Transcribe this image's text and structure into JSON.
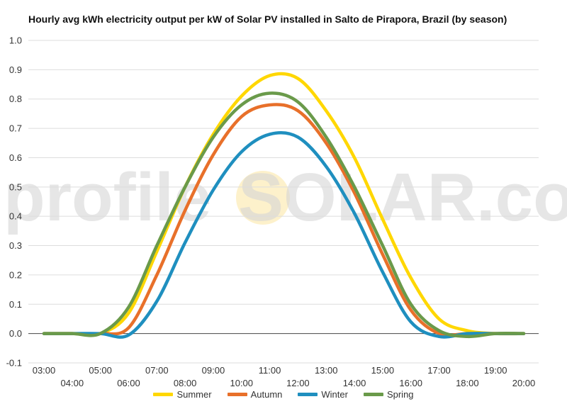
{
  "chart_data": {
    "type": "line",
    "title": "Hourly avg kWh electricity output per kW of Solar PV installed in Salto de Pirapora, Brazil (by season)",
    "watermark": "profileSOLAR.com",
    "watermark_parts": {
      "left": "profile",
      "right": "SOLAR.com"
    },
    "x_ticks_top": [
      "03:00",
      "05:00",
      "07:00",
      "09:00",
      "11:00",
      "13:00",
      "15:00",
      "17:00",
      "19:00"
    ],
    "x_ticks_bottom": [
      "04:00",
      "06:00",
      "08:00",
      "10:00",
      "12:00",
      "14:00",
      "16:00",
      "18:00",
      "20:00"
    ],
    "y_ticks": [
      "1.0",
      "0.9",
      "0.8",
      "0.7",
      "0.6",
      "0.5",
      "0.4",
      "0.3",
      "0.2",
      "0.1",
      "0.0",
      "-0.1"
    ],
    "ylim": [
      -0.1,
      1.0
    ],
    "xlim": [
      3,
      20
    ],
    "grid": true,
    "legend_position": "bottom",
    "x": [
      3,
      4,
      5,
      6,
      7,
      8,
      9,
      10,
      11,
      12,
      13,
      14,
      15,
      16,
      17,
      18,
      19,
      20
    ],
    "series": [
      {
        "name": "Summer",
        "color": "#FFD700",
        "values": [
          0.0,
          0.0,
          0.0,
          0.07,
          0.28,
          0.5,
          0.68,
          0.81,
          0.88,
          0.87,
          0.76,
          0.6,
          0.39,
          0.19,
          0.05,
          0.01,
          0.0,
          0.0
        ]
      },
      {
        "name": "Autumn",
        "color": "#E8702A",
        "values": [
          0.0,
          0.0,
          0.0,
          0.02,
          0.2,
          0.42,
          0.61,
          0.74,
          0.78,
          0.76,
          0.65,
          0.48,
          0.27,
          0.08,
          0.0,
          0.0,
          0.0,
          0.0
        ]
      },
      {
        "name": "Winter",
        "color": "#1F8FBF",
        "values": [
          0.0,
          0.0,
          0.0,
          -0.005,
          0.11,
          0.31,
          0.49,
          0.62,
          0.68,
          0.67,
          0.57,
          0.41,
          0.21,
          0.04,
          -0.01,
          0.0,
          0.0,
          0.0
        ]
      },
      {
        "name": "Spring",
        "color": "#6A9A4A",
        "values": [
          0.0,
          0.0,
          0.0,
          0.09,
          0.3,
          0.5,
          0.67,
          0.78,
          0.82,
          0.79,
          0.67,
          0.5,
          0.3,
          0.1,
          0.01,
          -0.01,
          0.0,
          0.0
        ]
      }
    ]
  }
}
